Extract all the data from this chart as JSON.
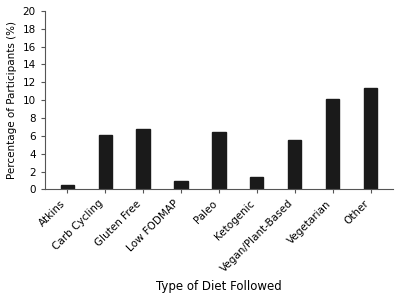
{
  "categories": [
    "Atkins",
    "Carb Cycling",
    "Gluten Free",
    "Low FODMAP",
    "Paleo",
    "Ketogenic",
    "Vegan/Plant-Based",
    "Vegetarian",
    "Other"
  ],
  "values": [
    0.5,
    6.1,
    6.8,
    0.9,
    6.4,
    1.4,
    5.5,
    10.1,
    11.4
  ],
  "bar_color": "#1a1a1a",
  "xlabel": "Type of Diet Followed",
  "ylabel": "Percentage of Participants (%)",
  "ylim": [
    0,
    20
  ],
  "yticks": [
    0,
    2,
    4,
    6,
    8,
    10,
    12,
    14,
    16,
    18,
    20
  ],
  "bar_width": 0.35,
  "background_color": "#ffffff",
  "xlabel_fontsize": 8.5,
  "ylabel_fontsize": 7.5,
  "tick_fontsize": 7.5,
  "label_rotation": 45,
  "figsize": [
    4.0,
    3.0
  ],
  "dpi": 100
}
